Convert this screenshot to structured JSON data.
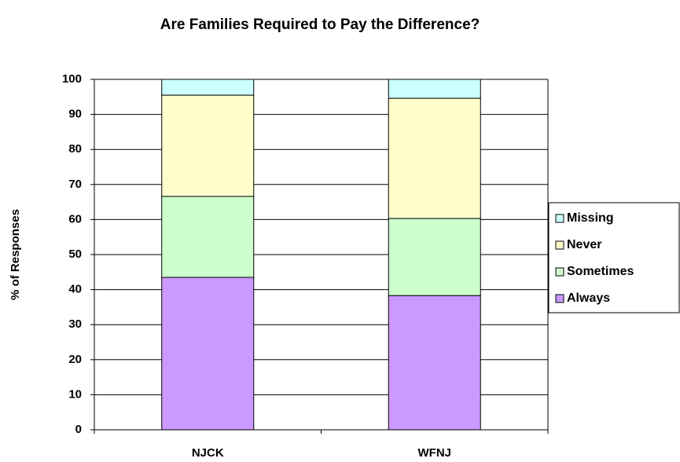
{
  "chart_data": {
    "type": "stacked_bar",
    "title": "Are Families Required to Pay the Difference?",
    "y_label": "% of Responses",
    "categories": [
      "NJCK",
      "WFNJ"
    ],
    "series": [
      {
        "name": "Always",
        "color": "#cc99ff",
        "values": [
          43.5,
          38.3
        ]
      },
      {
        "name": "Sometimes",
        "color": "#ccffcc",
        "values": [
          23.1,
          22.0
        ]
      },
      {
        "name": "Never",
        "color": "#ffffcc",
        "values": [
          28.9,
          34.3
        ]
      },
      {
        "name": "Missing",
        "color": "#ccffff",
        "values": [
          4.5,
          5.4
        ]
      }
    ],
    "ylim": [
      0,
      100
    ],
    "yticks": [
      0,
      10,
      20,
      30,
      40,
      50,
      60,
      70,
      80,
      90,
      100
    ],
    "grid": true,
    "legend": "right"
  }
}
